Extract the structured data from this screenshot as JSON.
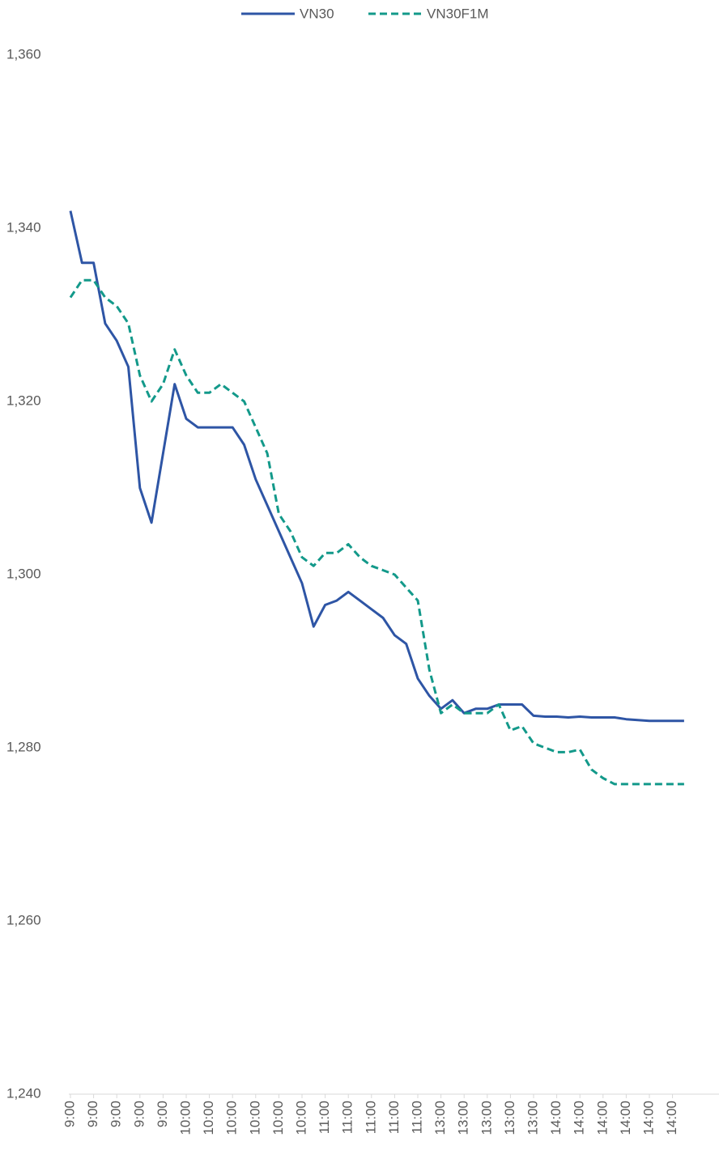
{
  "chart_data": {
    "type": "line",
    "categories": [
      "9:00",
      null,
      "9:00",
      null,
      "9:00",
      null,
      "9:00",
      null,
      "9:00",
      null,
      "10:00",
      null,
      "10:00",
      null,
      "10:00",
      null,
      "10:00",
      null,
      "10:00",
      null,
      "10:00",
      null,
      "11:00",
      null,
      "11:00",
      null,
      "11:00",
      null,
      "11:00",
      null,
      "11:00",
      null,
      "13:00",
      null,
      "13:00",
      null,
      "13:00",
      null,
      "13:00",
      null,
      "13:00",
      null,
      "14:00",
      null,
      "14:00",
      null,
      "14:00",
      null,
      "14:00",
      null,
      "14:00",
      null,
      "14:00",
      null
    ],
    "series": [
      {
        "name": "VN30",
        "color": "#2e55a5",
        "dash": false,
        "values": [
          1342,
          1336,
          1336,
          1329,
          1327,
          1324,
          1310,
          1306,
          1314,
          1322,
          1318,
          1317,
          1317,
          1317,
          1317,
          1315,
          1311,
          1308,
          1305,
          1302,
          1299,
          1294,
          1296.5,
          1297,
          1298,
          1297,
          1296,
          1295,
          1293,
          1292,
          1288,
          1286,
          1284.5,
          1285.5,
          1284,
          1284.5,
          1284.5,
          1285,
          1285,
          1285,
          1283.7,
          1283.6,
          1283.6,
          1283.5,
          1283.6,
          1283.5,
          1283.5,
          1283.5,
          1283.3,
          1283.2,
          1283.1,
          1283.1,
          1283.1,
          1283.1
        ]
      },
      {
        "name": "VN30F1M",
        "color": "#13998a",
        "dash": true,
        "values": [
          1332,
          1334,
          1334,
          1332,
          1331,
          1329,
          1323,
          1320,
          1322,
          1326,
          1323,
          1321,
          1321,
          1322,
          1321,
          1320,
          1317,
          1314,
          1307,
          1305,
          1302,
          1301,
          1302.5,
          1302.5,
          1303.5,
          1302,
          1301,
          1300.5,
          1300,
          1298.5,
          1297,
          1289,
          1284,
          1285,
          1284,
          1284,
          1284,
          1285,
          1282,
          1282.5,
          1280.5,
          1280,
          1279.5,
          1279.5,
          1279.8,
          1277.5,
          1276.5,
          1275.8,
          1275.8,
          1275.8,
          1275.8,
          1275.8,
          1275.8,
          1275.8
        ]
      }
    ],
    "ylim": [
      1240,
      1360
    ],
    "yticks": [
      {
        "value": 1240,
        "label": "1,240"
      },
      {
        "value": 1260,
        "label": "1,260"
      },
      {
        "value": 1280,
        "label": "1,280"
      },
      {
        "value": 1300,
        "label": "1,300"
      },
      {
        "value": 1320,
        "label": "1,320"
      },
      {
        "value": 1340,
        "label": "1,340"
      },
      {
        "value": 1360,
        "label": "1,360"
      }
    ],
    "grid": false,
    "legend": "top"
  }
}
